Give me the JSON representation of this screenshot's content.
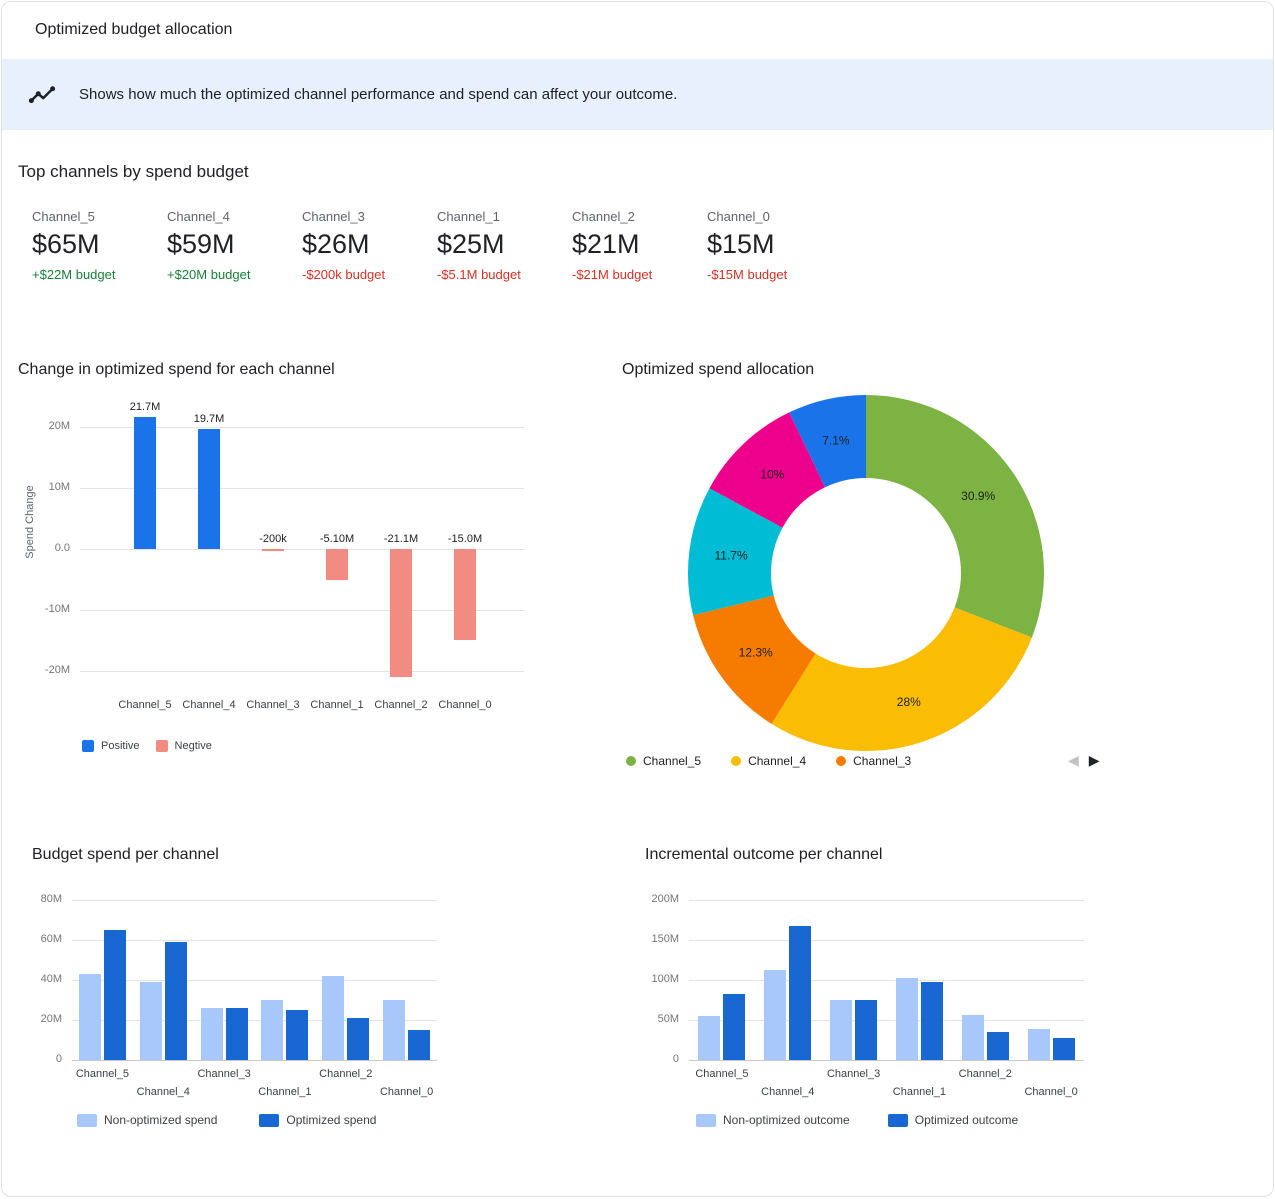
{
  "header": {
    "title": "Optimized budget allocation"
  },
  "banner": {
    "icon": "insights-icon",
    "text": "Shows how much the optimized channel performance and spend can affect your outcome."
  },
  "top_channels": {
    "heading": "Top channels by spend budget",
    "items": [
      {
        "name": "Channel_5",
        "value": "$65M",
        "delta": "+$22M budget",
        "direction": "up"
      },
      {
        "name": "Channel_4",
        "value": "$59M",
        "delta": "+$20M budget",
        "direction": "up"
      },
      {
        "name": "Channel_3",
        "value": "$26M",
        "delta": "-$200k budget",
        "direction": "down"
      },
      {
        "name": "Channel_1",
        "value": "$25M",
        "delta": "-$5.1M budget",
        "direction": "down"
      },
      {
        "name": "Channel_2",
        "value": "$21M",
        "delta": "-$21M budget",
        "direction": "down"
      },
      {
        "name": "Channel_0",
        "value": "$15M",
        "delta": "-$15M budget",
        "direction": "down"
      }
    ]
  },
  "colors": {
    "positive": "#1a73e8",
    "negative": "#f28b82",
    "non_optimized": "#a8c7fa",
    "optimized": "#1967d2",
    "delta_up": "#188038",
    "delta_down": "#d93025",
    "banner_bg": "#e8f0fe"
  },
  "pagination": {
    "prev": "◀",
    "next": "▶"
  },
  "chart_data": [
    {
      "type": "bar",
      "title": "Change in optimized spend for each channel",
      "ylabel": "Spend Change",
      "categories": [
        "Channel_5",
        "Channel_4",
        "Channel_3",
        "Channel_1",
        "Channel_2",
        "Channel_0"
      ],
      "values_millions": [
        21.7,
        19.7,
        -0.2,
        -5.1,
        -21.1,
        -15.0
      ],
      "bar_labels": [
        "21.7M",
        "19.7M",
        "-200k",
        "-5.10M",
        "-21.1M",
        "-15.0M"
      ],
      "ytick_values": [
        20,
        10,
        0,
        -10,
        -20
      ],
      "ytick_labels": [
        "20M",
        "10M",
        "0.0",
        "-10M",
        "-20M"
      ],
      "ylim": [
        -23,
        22.5
      ],
      "legend": [
        {
          "label": "Positive",
          "color": "#1a73e8"
        },
        {
          "label": "Negtive",
          "color": "#f28b82"
        }
      ]
    },
    {
      "type": "pie",
      "title": "Optimized spend allocation",
      "donut": true,
      "slices": [
        {
          "name": "Channel_5",
          "percent": 30.9,
          "label": "30.9%",
          "color": "#7cb342"
        },
        {
          "name": "Channel_4",
          "percent": 28,
          "label": "28%",
          "color": "#fbbc04"
        },
        {
          "name": "Channel_3",
          "percent": 12.3,
          "label": "12.3%",
          "color": "#f57c00"
        },
        {
          "name": null,
          "percent": 11.7,
          "label": "11.7%",
          "color": "#00bcd4"
        },
        {
          "name": null,
          "percent": 10,
          "label": "10%",
          "color": "#ec008c"
        },
        {
          "name": null,
          "percent": 7.1,
          "label": "7.1%",
          "color": "#1a73e8"
        }
      ]
    },
    {
      "type": "grouped_bar",
      "title": "Budget spend per channel",
      "categories": [
        "Channel_5",
        "Channel_4",
        "Channel_3",
        "Channel_1",
        "Channel_2",
        "Channel_0"
      ],
      "series": [
        {
          "name": "Non-optimized spend",
          "color": "#a8c7fa",
          "values_millions": [
            43,
            39,
            26,
            30,
            42,
            30
          ]
        },
        {
          "name": "Optimized spend",
          "color": "#1967d2",
          "values_millions": [
            65,
            59,
            26,
            25,
            21,
            15
          ]
        }
      ],
      "ytick_values": [
        0,
        20,
        40,
        60,
        80
      ],
      "ytick_labels": [
        "0",
        "20M",
        "40M",
        "60M",
        "80M"
      ],
      "ylim": [
        0,
        84
      ]
    },
    {
      "type": "grouped_bar",
      "title": "Incremental outcome per channel",
      "categories": [
        "Channel_5",
        "Channel_4",
        "Channel_3",
        "Channel_1",
        "Channel_2",
        "Channel_0"
      ],
      "series": [
        {
          "name": "Non-optimized outcome",
          "color": "#a8c7fa",
          "values_millions": [
            55,
            112,
            75,
            102,
            56,
            39
          ]
        },
        {
          "name": "Optimized outcome",
          "color": "#1967d2",
          "values_millions": [
            83,
            167,
            75,
            97,
            35,
            27
          ]
        }
      ],
      "ytick_values": [
        0,
        50,
        100,
        150,
        200
      ],
      "ytick_labels": [
        "0",
        "50M",
        "100M",
        "150M",
        "200M"
      ],
      "ylim": [
        0,
        210
      ]
    }
  ]
}
